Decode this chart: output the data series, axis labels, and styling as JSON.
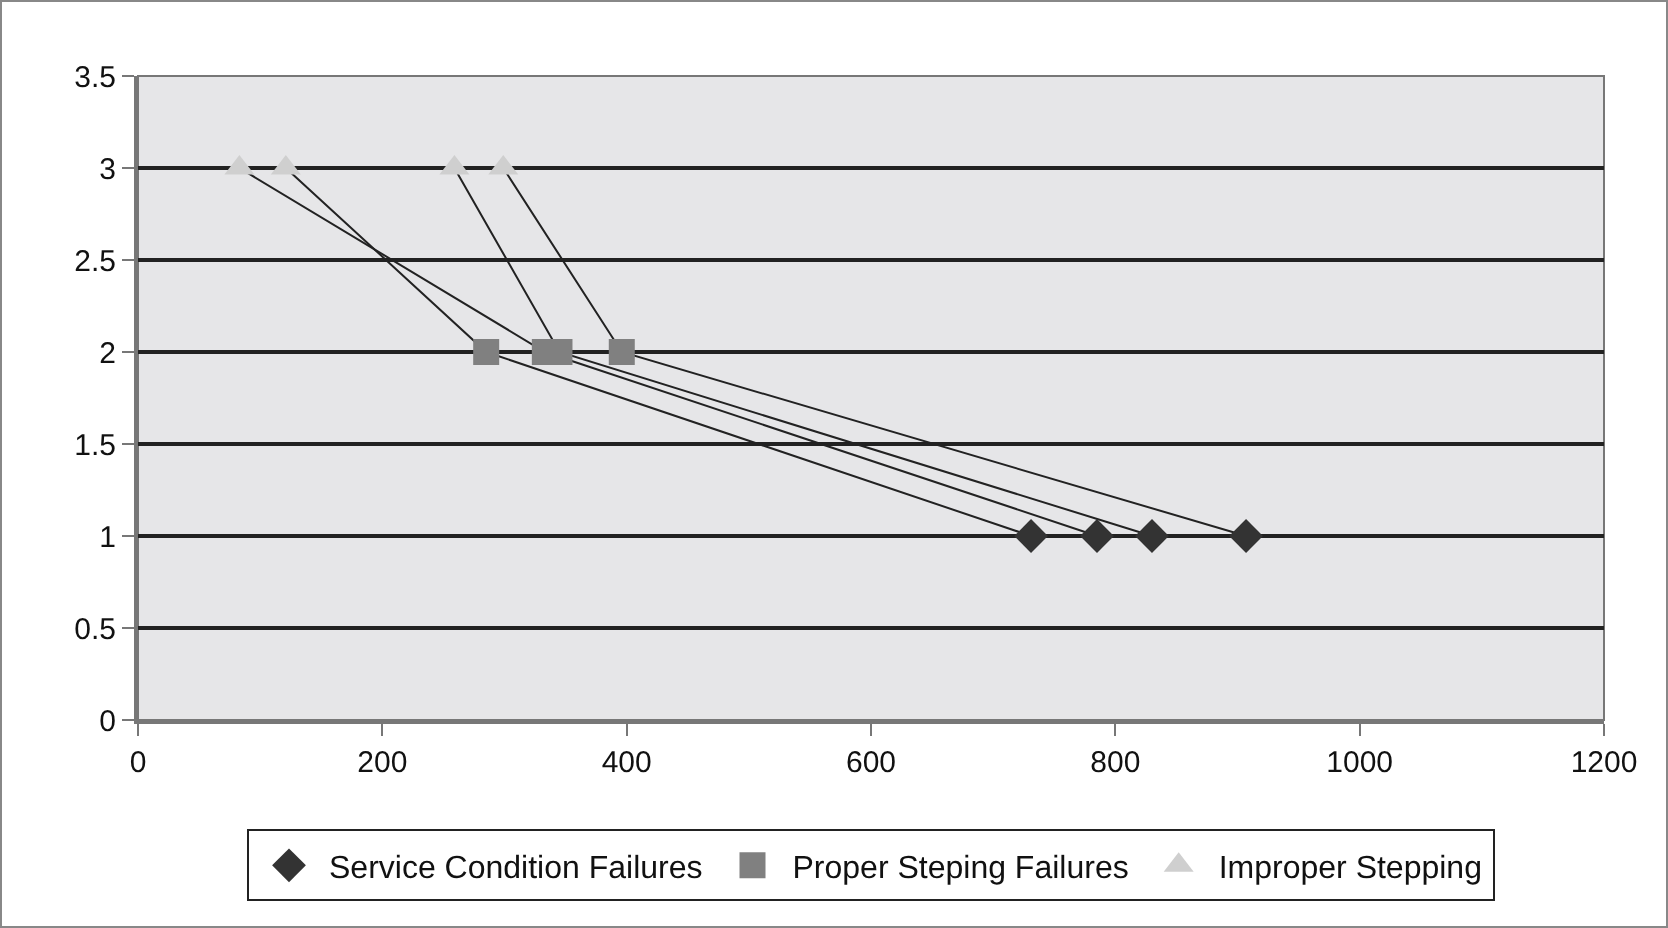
{
  "chart_data": {
    "type": "scatter",
    "xlim": [
      0,
      1200
    ],
    "xticks": [
      0,
      200,
      400,
      600,
      800,
      1000,
      1200
    ],
    "ylim": [
      0,
      3.5
    ],
    "yticks": [
      0,
      0.5,
      1,
      1.5,
      2,
      2.5,
      3,
      3.5
    ],
    "grid": "y",
    "legend": "bottom",
    "series": [
      {
        "type": "line",
        "color": "#222222",
        "marker": "none",
        "x": [
          121,
          285,
          731
        ],
        "values": [
          3,
          2,
          1
        ]
      },
      {
        "type": "line",
        "color": "#222222",
        "marker": "none",
        "x": [
          83,
          333,
          785
        ],
        "values": [
          3,
          2,
          1
        ]
      },
      {
        "type": "line",
        "color": "#222222",
        "marker": "none",
        "x": [
          259,
          345,
          830
        ],
        "values": [
          3,
          2,
          1
        ]
      },
      {
        "type": "line",
        "color": "#222222",
        "marker": "none",
        "x": [
          299,
          396,
          907
        ],
        "values": [
          3,
          2,
          1
        ]
      },
      {
        "name": "Service Condition Failures",
        "color": "#333333",
        "marker": "diamond",
        "x": [
          731,
          785,
          830,
          907
        ],
        "values": [
          1,
          1,
          1,
          1
        ]
      },
      {
        "name": "Proper Steping Failures",
        "color": "#808080",
        "marker": "square",
        "x": [
          285,
          333,
          345,
          396
        ],
        "values": [
          2,
          2,
          2,
          2
        ]
      },
      {
        "name": "Improper Stepping",
        "color": "#cfcfcf",
        "marker": "triangle",
        "x": [
          83,
          121,
          259,
          299
        ],
        "values": [
          3,
          3,
          3,
          3
        ]
      }
    ]
  }
}
